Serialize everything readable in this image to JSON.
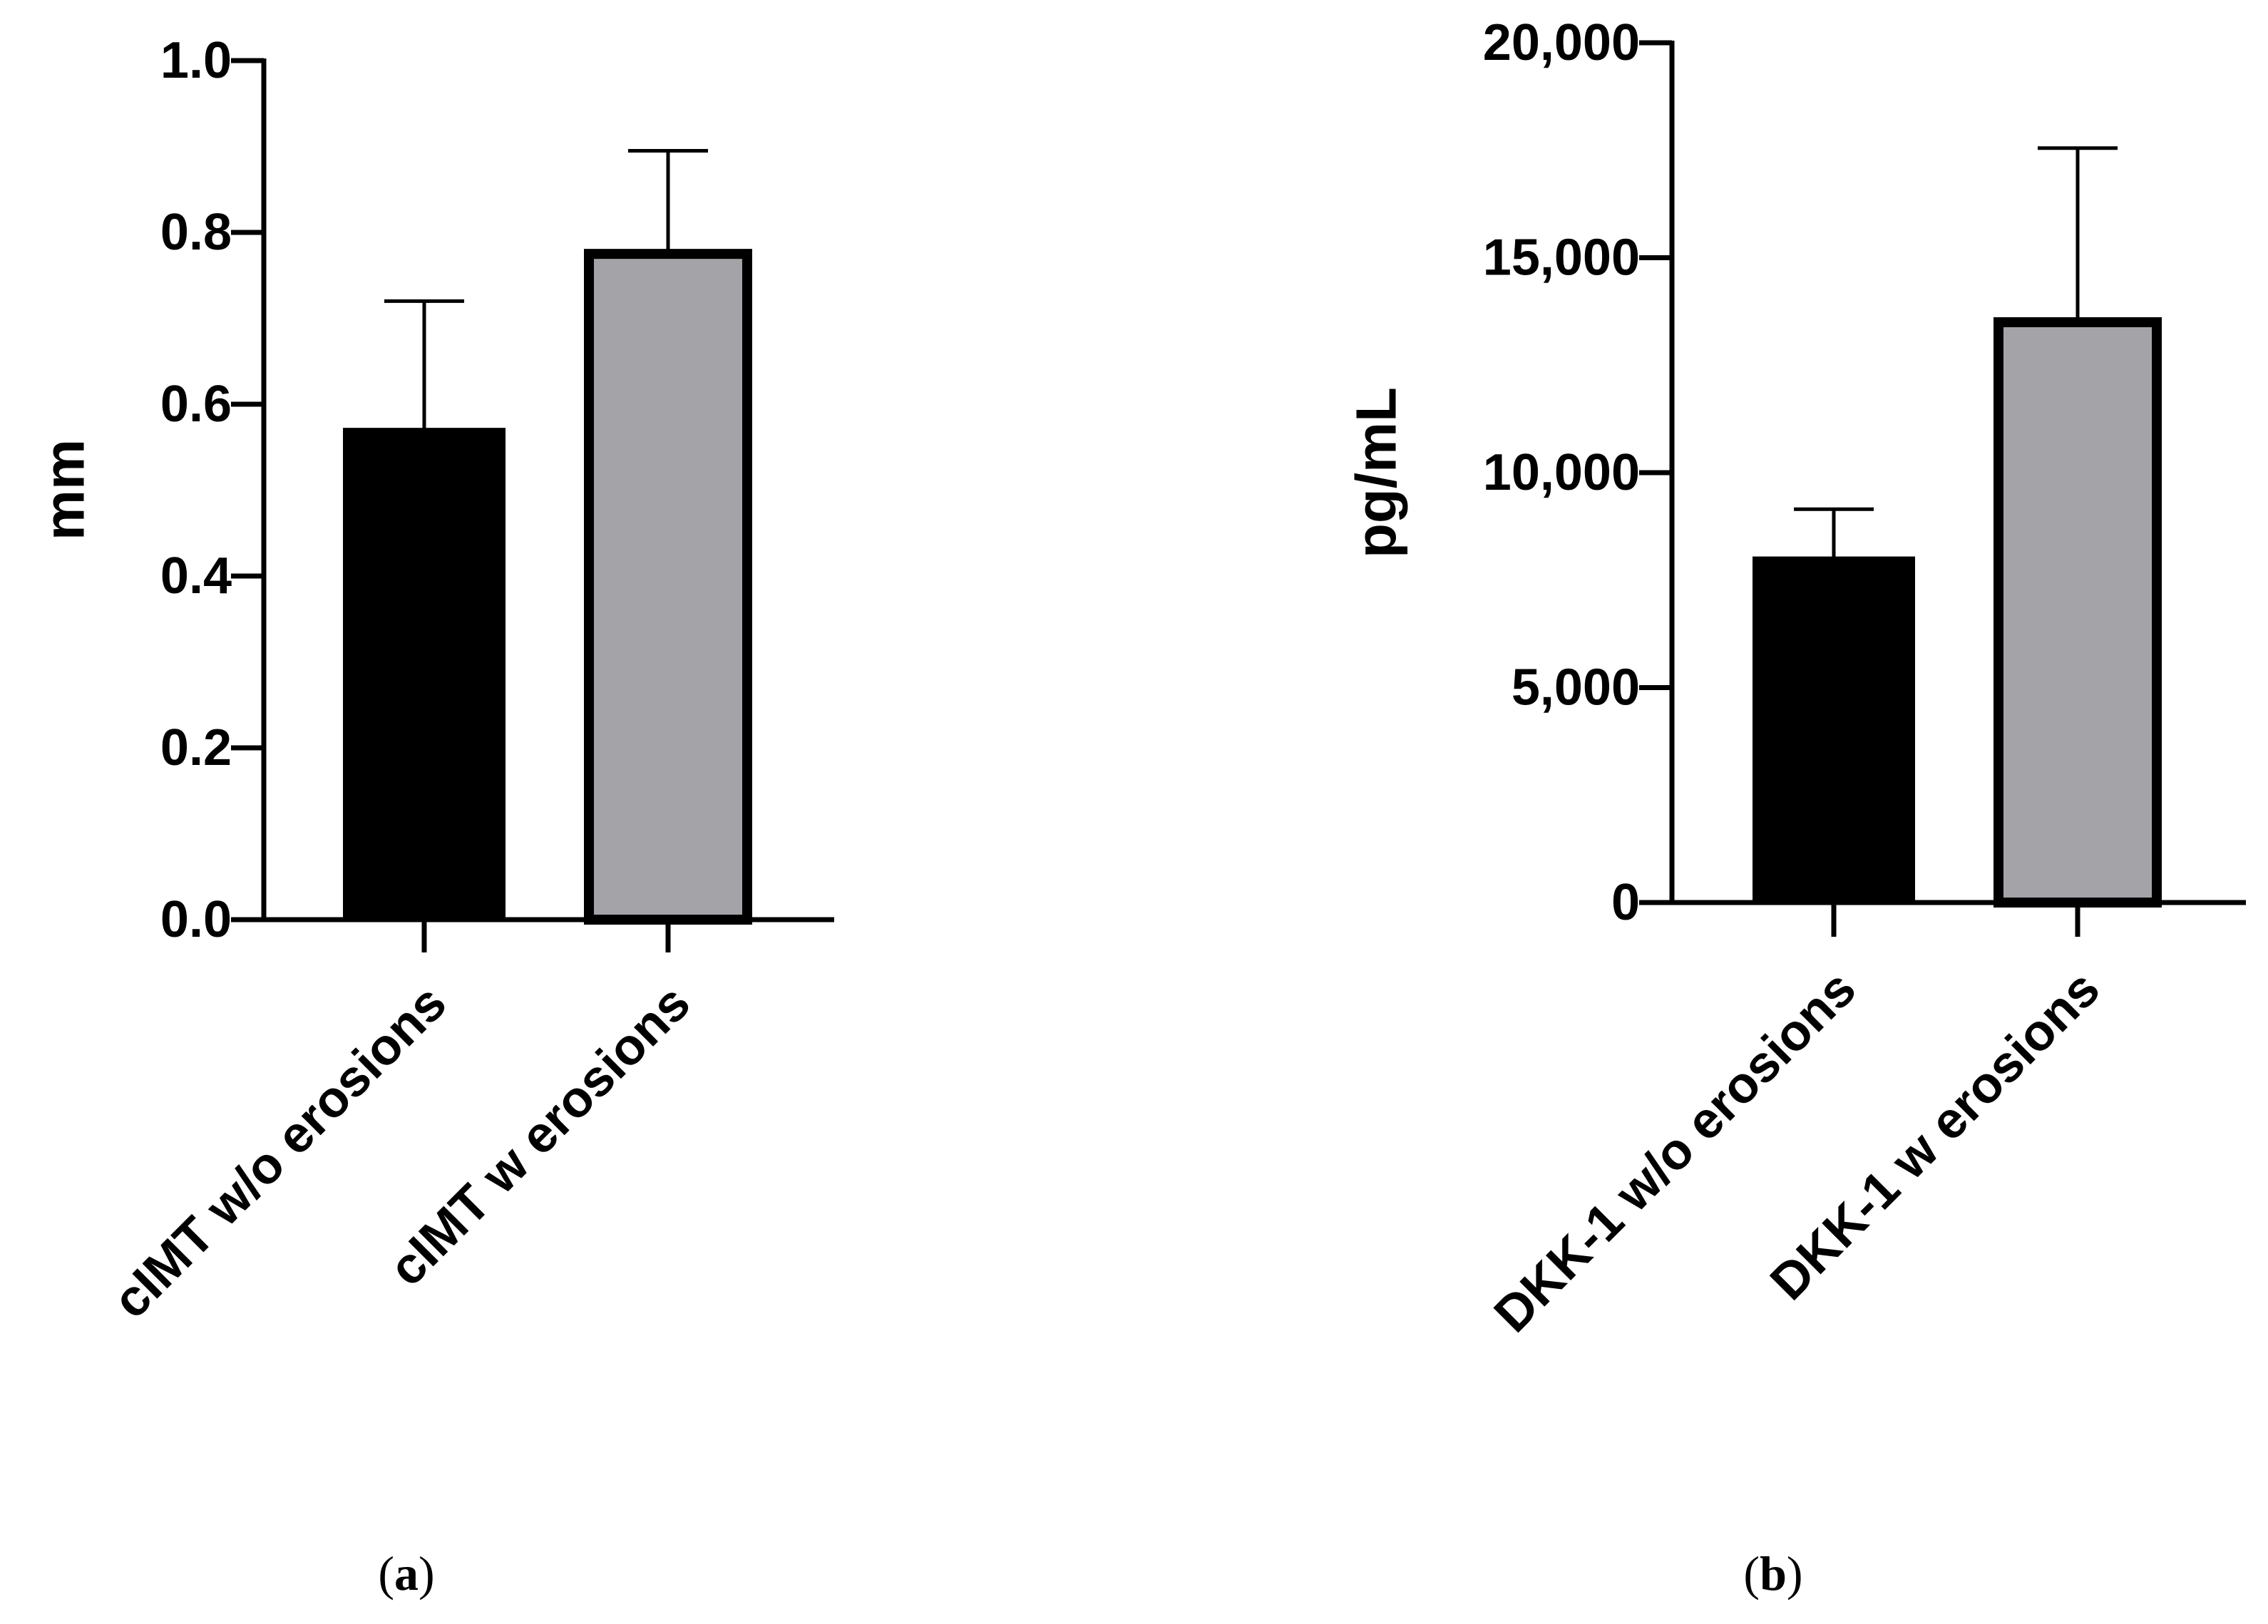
{
  "chart_data": [
    {
      "type": "bar",
      "panel_label": "a",
      "title": "",
      "xlabel": "",
      "ylabel": "mm",
      "ylim": [
        0,
        1.0
      ],
      "yticks": [
        0.0,
        0.2,
        0.4,
        0.6,
        0.8,
        1.0
      ],
      "ytick_labels": [
        "0.0",
        "0.2",
        "0.4",
        "0.6",
        "0.8",
        "1.0"
      ],
      "categories": [
        "cIMT w/o erosions",
        "cIMT w erosions"
      ],
      "values": [
        0.57,
        0.775
      ],
      "error_upper": [
        0.72,
        0.895
      ],
      "bar_colors": [
        "#000000",
        "#a4a3a8"
      ],
      "grid": false,
      "legend": "none"
    },
    {
      "type": "bar",
      "panel_label": "b",
      "title": "",
      "xlabel": "",
      "ylabel": "pg/mL",
      "ylim": [
        0,
        20000
      ],
      "yticks": [
        0,
        5000,
        10000,
        15000,
        20000
      ],
      "ytick_labels": [
        "0",
        "5,000",
        "10,000",
        "15,000",
        "20,000"
      ],
      "categories": [
        "DKK-1 w/o erosions",
        "DKK-1 w erosions"
      ],
      "values": [
        8000,
        13500
      ],
      "error_upper": [
        9150,
        17550
      ],
      "bar_colors": [
        "#000000",
        "#a4a3a8"
      ],
      "grid": false,
      "legend": "none"
    }
  ]
}
